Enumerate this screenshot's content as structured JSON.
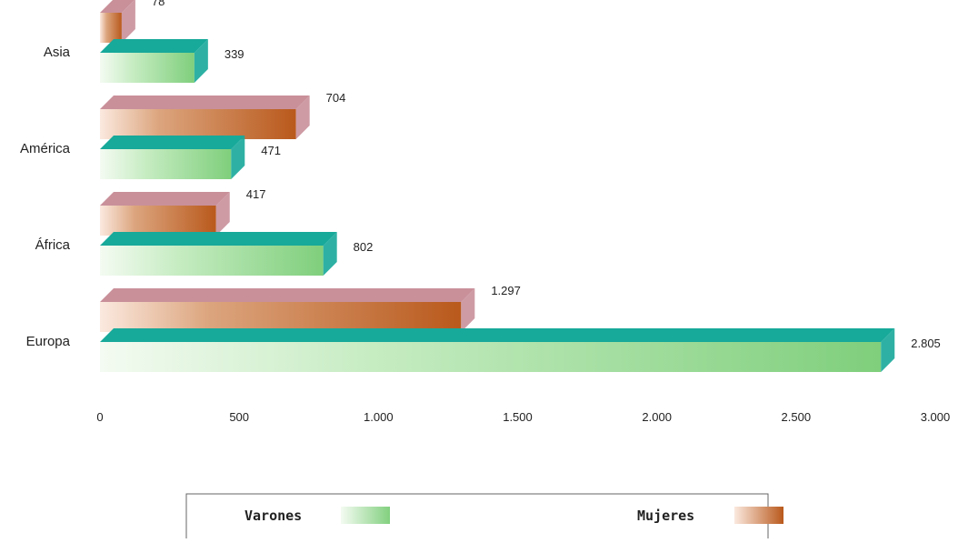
{
  "chart_data": {
    "type": "bar",
    "orientation": "horizontal",
    "categories": [
      "Asia",
      "América",
      "África",
      "Europa"
    ],
    "series": [
      {
        "name": "Varones",
        "values": [
          339,
          471,
          802,
          2805
        ],
        "labels": [
          "339",
          "471",
          "802",
          "2.805"
        ],
        "color": "#7ccf7c",
        "side_color": "#17a99a"
      },
      {
        "name": "Mujeres",
        "values": [
          78,
          704,
          417,
          1297
        ],
        "labels": [
          "78",
          "704",
          "417",
          "1.297"
        ],
        "color": "#c56a2c",
        "side_color": "#c9909a"
      }
    ],
    "xlim": [
      0,
      3000
    ],
    "xticks": [
      0,
      500,
      1000,
      1500,
      2000,
      2500,
      3000
    ],
    "xtick_labels": [
      "0",
      "500",
      "1.000",
      "1.500",
      "2.000",
      "2.500",
      "3.000"
    ],
    "title": "",
    "xlabel": "",
    "ylabel": "",
    "grid": false,
    "legend_position": "bottom"
  }
}
